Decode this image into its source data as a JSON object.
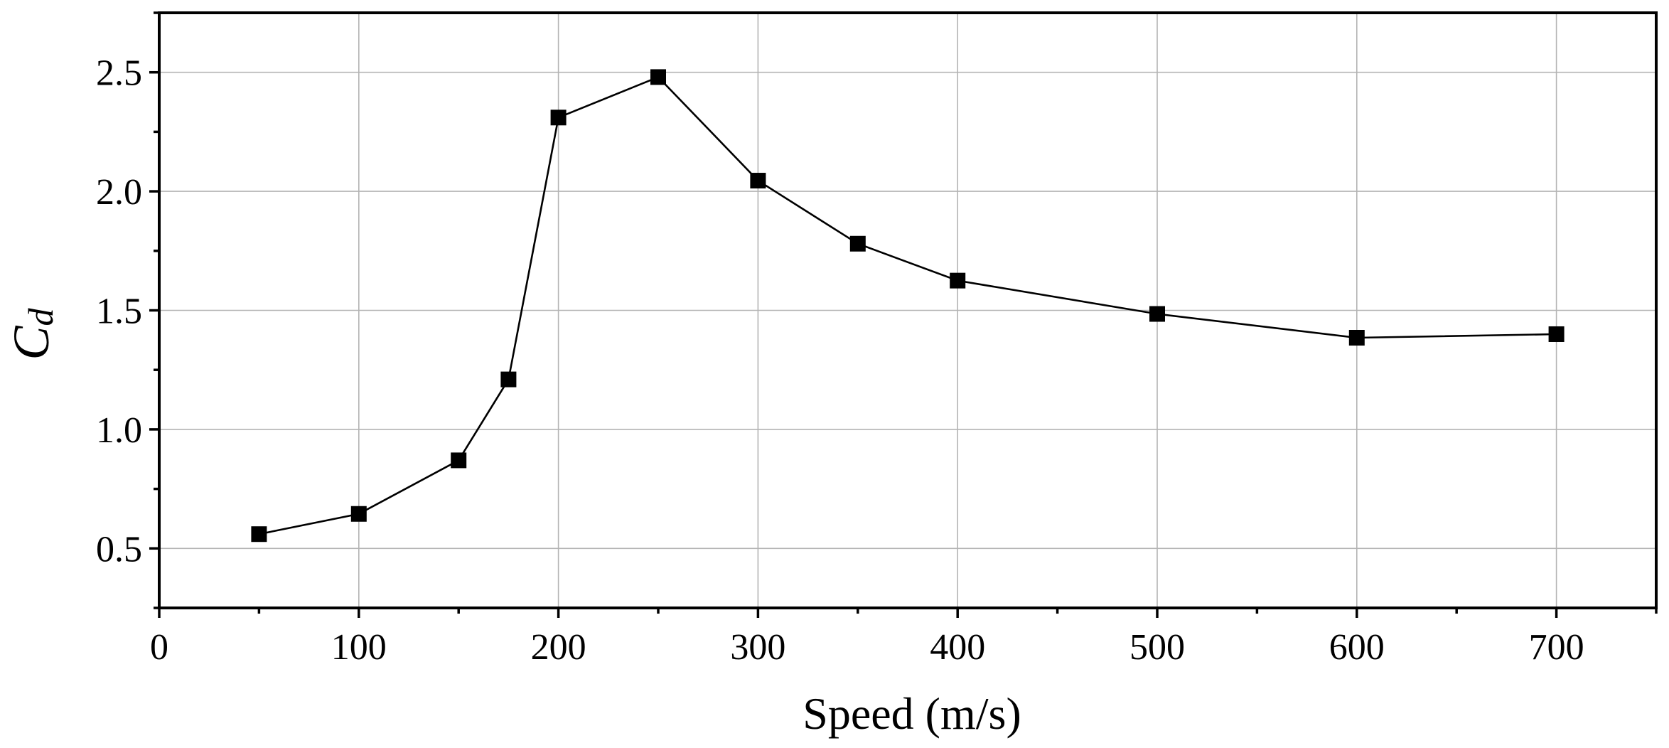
{
  "chart_data": {
    "type": "line",
    "xlabel": "Speed (m/s)",
    "ylabel": {
      "main": "C",
      "sub": "d"
    },
    "xlim": [
      0,
      750
    ],
    "ylim": [
      0.25,
      2.75
    ],
    "x_ticks": [
      0,
      100,
      200,
      300,
      400,
      500,
      600,
      700
    ],
    "x_minor_ticks": [
      50,
      150,
      250,
      350,
      450,
      550,
      650,
      750
    ],
    "y_ticks": [
      0.5,
      1.0,
      1.5,
      2.0,
      2.5
    ],
    "y_tick_labels": [
      "0.5",
      "1.0",
      "1.5",
      "2.0",
      "2.5"
    ],
    "y_minor_ticks": [
      0.25,
      0.75,
      1.25,
      1.75,
      2.25,
      2.75
    ],
    "grid": true,
    "legend": "none",
    "marker": "square",
    "colors": {
      "series": "#000000",
      "grid": "#b4b4b4"
    },
    "series": [
      {
        "x": [
          50,
          100,
          150,
          175,
          200,
          250,
          300,
          350,
          400,
          500,
          600,
          700
        ],
        "y": [
          0.56,
          0.645,
          0.87,
          1.21,
          2.31,
          2.48,
          2.045,
          1.78,
          1.625,
          1.485,
          1.385,
          1.4
        ]
      }
    ]
  }
}
